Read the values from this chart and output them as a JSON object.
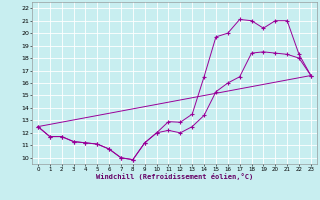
{
  "xlabel": "Windchill (Refroidissement éolien,°C)",
  "bg_color": "#c8eef0",
  "line_color": "#990099",
  "grid_color": "#ffffff",
  "xlim": [
    -0.5,
    23.5
  ],
  "ylim": [
    9.5,
    22.5
  ],
  "xticks": [
    0,
    1,
    2,
    3,
    4,
    5,
    6,
    7,
    8,
    9,
    10,
    11,
    12,
    13,
    14,
    15,
    16,
    17,
    18,
    19,
    20,
    21,
    22,
    23
  ],
  "yticks": [
    10,
    11,
    12,
    13,
    14,
    15,
    16,
    17,
    18,
    19,
    20,
    21,
    22
  ],
  "line1_x": [
    0,
    1,
    2,
    3,
    4,
    5,
    6,
    7,
    8,
    9,
    10,
    11,
    12,
    13,
    14,
    15,
    16,
    17,
    18,
    19,
    20,
    21,
    22,
    23
  ],
  "line1_y": [
    12.5,
    11.7,
    11.7,
    11.3,
    11.2,
    11.1,
    10.7,
    10.0,
    9.85,
    11.2,
    12.0,
    12.9,
    12.85,
    13.5,
    16.5,
    19.7,
    20.0,
    21.1,
    21.0,
    20.4,
    21.0,
    21.0,
    18.3,
    16.6
  ],
  "line2_x": [
    0,
    1,
    2,
    3,
    4,
    5,
    6,
    7,
    8,
    9,
    10,
    11,
    12,
    13,
    14,
    15,
    16,
    17,
    18,
    19,
    20,
    21,
    22,
    23
  ],
  "line2_y": [
    12.5,
    11.7,
    11.7,
    11.3,
    11.2,
    11.1,
    10.7,
    10.0,
    9.85,
    11.2,
    12.0,
    12.2,
    12.0,
    12.5,
    13.4,
    15.3,
    16.0,
    16.5,
    18.4,
    18.5,
    18.4,
    18.3,
    18.0,
    16.6
  ],
  "line3_x": [
    0,
    23
  ],
  "line3_y": [
    12.5,
    16.6
  ]
}
